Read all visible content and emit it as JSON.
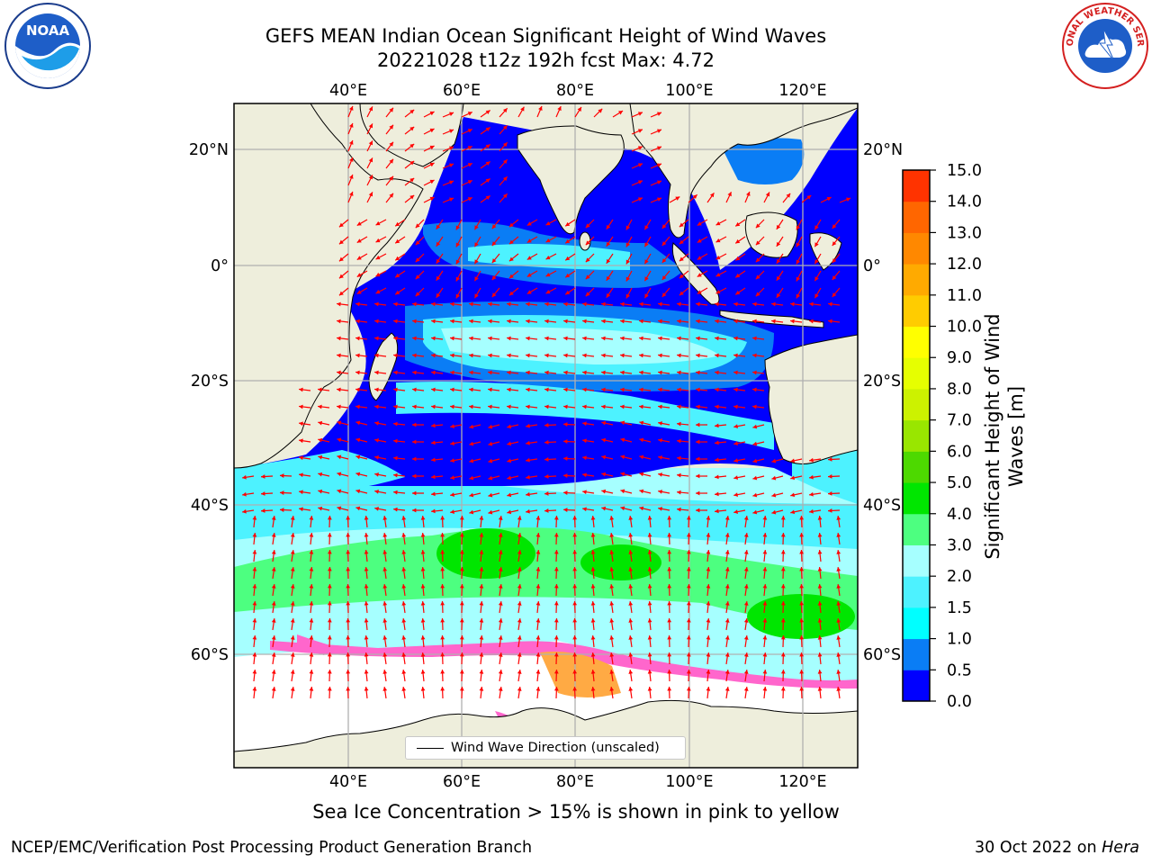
{
  "title": {
    "line1": "GEFS MEAN Indian Ocean Significant Height of Wind Waves",
    "line2": "20221028 t12z 192h fcst   Max: 4.72"
  },
  "axes": {
    "lon_ticks": [
      "40°E",
      "60°E",
      "80°E",
      "100°E",
      "120°E"
    ],
    "lat_ticks": [
      "20°N",
      "0°",
      "20°S",
      "40°S",
      "60°S"
    ]
  },
  "legend": {
    "label": "Wind Wave Direction (unscaled)"
  },
  "colorbar": {
    "title": "Significant Height of Wind Waves [m]",
    "ticks": [
      "0.0",
      "0.5",
      "1.0",
      "1.5",
      "2.0",
      "3.0",
      "4.0",
      "5.0",
      "6.0",
      "7.0",
      "8.0",
      "9.0",
      "10.0",
      "11.0",
      "12.0",
      "13.0",
      "14.0",
      "15.0"
    ],
    "colors": [
      "#0000ff",
      "#0a7df5",
      "#00ffff",
      "#4df2ff",
      "#a6ffff",
      "#4dff80",
      "#00e600",
      "#4dd900",
      "#99e600",
      "#ccf200",
      "#e6ff00",
      "#ffff00",
      "#ffcc00",
      "#ffaa00",
      "#ff8800",
      "#ff6600",
      "#ff3300",
      "#ff0000"
    ]
  },
  "footer": {
    "note": "Sea Ice Concentration > 15% is shown in pink to yellow",
    "left": "NCEP/EMC/Verification Post Processing Product Generation Branch",
    "right_date": "30 Oct 2022 on ",
    "right_host": "Hera"
  },
  "logos": {
    "left": "NOAA",
    "right": "NATIONAL WEATHER SERVICE"
  },
  "colors": {
    "land": "#eeeedc",
    "ice": "#ffffff",
    "ice_edge": "#ff66cc",
    "ice_orange": "#ffaa44",
    "arrow": "#ff0000",
    "grid": "#b0b0b0"
  }
}
